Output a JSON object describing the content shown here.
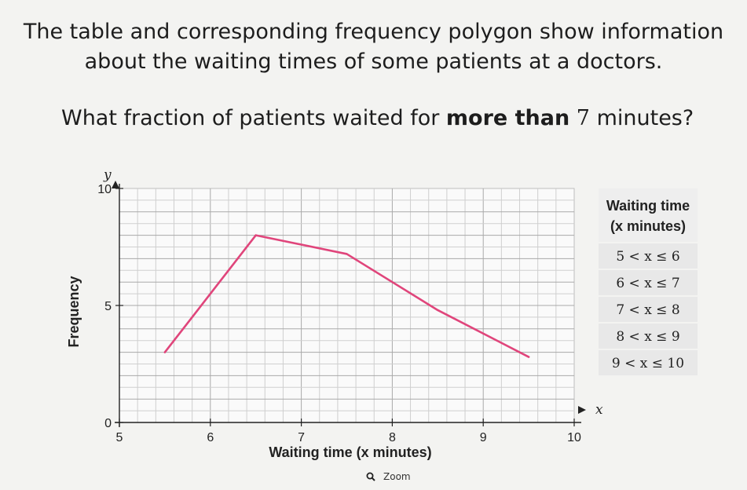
{
  "question": {
    "line1": "The table and corresponding frequency polygon show information",
    "line2": "about the waiting times of some patients at a doctors.",
    "ask_prefix": "What fraction of patients waited for ",
    "ask_bold": "more than",
    "ask_math": "7",
    "ask_unit": "minutes?"
  },
  "chart_data": {
    "type": "line",
    "xlabel": "Waiting time (x minutes)",
    "ylabel": "Frequency",
    "x_axis_symbol": "x",
    "y_axis_symbol": "y",
    "xlim": [
      5,
      10
    ],
    "ylim": [
      0,
      10
    ],
    "x_ticks": [
      "5",
      "6",
      "7",
      "8",
      "9",
      "10"
    ],
    "y_ticks": [
      "0",
      "5",
      "10"
    ],
    "grid": true,
    "series": [
      {
        "x": [
          5.5,
          6.5,
          7.5,
          8.5,
          9.5
        ],
        "y": [
          3,
          8,
          7.2,
          4.8,
          2.8
        ],
        "color": "#e0457b"
      }
    ]
  },
  "table": {
    "header1": "Waiting time",
    "header2": "(x minutes)",
    "rows": [
      "5 < x ≤ 6",
      "6 < x ≤ 7",
      "7 < x ≤ 8",
      "8 < x ≤ 9",
      "9 < x ≤ 10"
    ],
    "header_bg": "#eeeeee",
    "row_bg": "#e8e8e8"
  },
  "zoom": {
    "label": "Zoom"
  }
}
